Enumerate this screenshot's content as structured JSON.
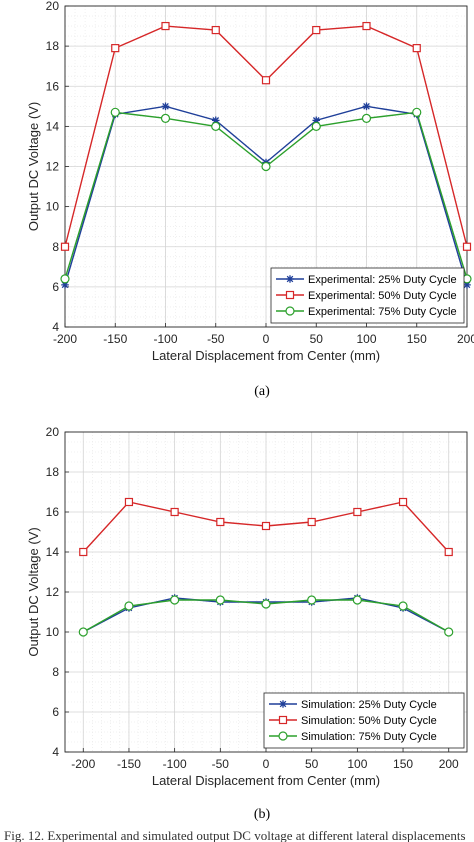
{
  "figure": {
    "captions": [
      "(a)",
      "(b)"
    ],
    "footer_text": "Fig. 12. Experimental and simulated output DC voltage at different lateral displacements"
  },
  "chart_data": [
    {
      "type": "line",
      "xlabel": "Lateral Displacement from Center (mm)",
      "ylabel": "Output DC Voltage (V)",
      "xlim": [
        -200,
        200
      ],
      "ylim": [
        4,
        20
      ],
      "xticks": [
        "-200",
        "-150",
        "-100",
        "-50",
        "0",
        "50",
        "100",
        "150",
        "200"
      ],
      "yticks": [
        "4",
        "6",
        "8",
        "10",
        "12",
        "14",
        "16",
        "18",
        "20"
      ],
      "grid": true,
      "minor_grid": true,
      "legend_position": "bottom-right",
      "x": [
        -200,
        -150,
        -100,
        -50,
        0,
        50,
        100,
        150,
        200
      ],
      "series": [
        {
          "name": "Experimental: 25% Duty Cycle",
          "color": "#1f3f99",
          "marker": "asterisk",
          "values": [
            6.1,
            14.6,
            15.0,
            14.3,
            12.2,
            14.3,
            15.0,
            14.6,
            6.1
          ]
        },
        {
          "name": "Experimental: 50% Duty Cycle",
          "color": "#d62728",
          "marker": "square",
          "values": [
            8.0,
            17.9,
            19.0,
            18.8,
            16.3,
            18.8,
            19.0,
            17.9,
            8.0
          ]
        },
        {
          "name": "Experimental: 75% Duty Cycle",
          "color": "#2ca02c",
          "marker": "circle",
          "values": [
            6.4,
            14.7,
            14.4,
            14.0,
            12.0,
            14.0,
            14.4,
            14.7,
            6.4
          ]
        }
      ]
    },
    {
      "type": "line",
      "xlabel": "Lateral Displacement from Center (mm)",
      "ylabel": "Output DC Voltage (V)",
      "xlim": [
        -220,
        220
      ],
      "ylim": [
        4,
        20
      ],
      "xticks": [
        "-200",
        "-150",
        "-100",
        "-50",
        "0",
        "50",
        "100",
        "150",
        "200"
      ],
      "yticks": [
        "4",
        "6",
        "8",
        "10",
        "12",
        "14",
        "16",
        "18",
        "20"
      ],
      "grid": true,
      "minor_grid": true,
      "legend_position": "bottom-right",
      "x": [
        -200,
        -150,
        -100,
        -50,
        0,
        50,
        100,
        150,
        200
      ],
      "series": [
        {
          "name": "Simulation: 25% Duty Cycle",
          "color": "#1f3f99",
          "marker": "asterisk",
          "values": [
            10.0,
            11.2,
            11.7,
            11.5,
            11.5,
            11.5,
            11.7,
            11.2,
            10.0
          ]
        },
        {
          "name": "Simulation: 50% Duty Cycle",
          "color": "#d62728",
          "marker": "square",
          "values": [
            14.0,
            16.5,
            16.0,
            15.5,
            15.3,
            15.5,
            16.0,
            16.5,
            14.0
          ]
        },
        {
          "name": "Simulation: 75% Duty Cycle",
          "color": "#2ca02c",
          "marker": "circle",
          "values": [
            10.0,
            11.3,
            11.6,
            11.6,
            11.4,
            11.6,
            11.6,
            11.3,
            10.0
          ]
        }
      ]
    }
  ]
}
